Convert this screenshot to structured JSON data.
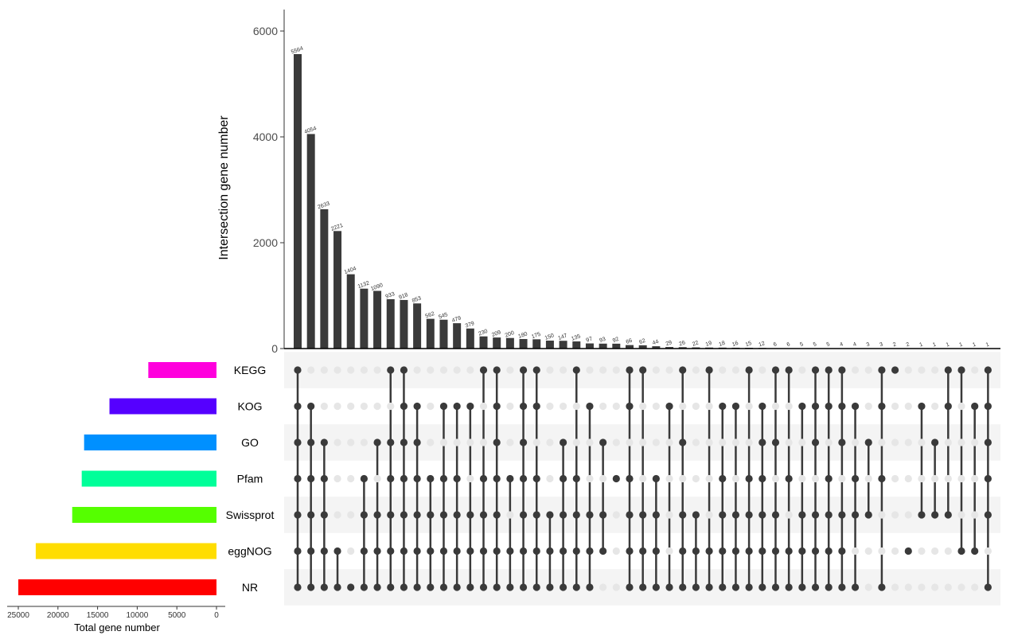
{
  "chart_data": {
    "type": "bar",
    "subtype": "upset",
    "ylabel": "Intersection gene number",
    "ylim": [
      0,
      6400
    ],
    "yticks": [
      0,
      2000,
      4000,
      6000
    ],
    "set_size_xlabel": "Total gene number",
    "set_size_xlim": [
      0,
      25000
    ],
    "set_size_xticks": [
      25000,
      20000,
      15000,
      10000,
      5000,
      0
    ],
    "sets": [
      {
        "name": "KEGG",
        "size": 8600,
        "color": "#FF00DD"
      },
      {
        "name": "KOG",
        "size": 13500,
        "color": "#5500FF"
      },
      {
        "name": "GO",
        "size": 16700,
        "color": "#0090FF"
      },
      {
        "name": "Pfam",
        "size": 17000,
        "color": "#00FF99"
      },
      {
        "name": "Swissprot",
        "size": 18200,
        "color": "#55FF00"
      },
      {
        "name": "eggNOG",
        "size": 22800,
        "color": "#FFDD00"
      },
      {
        "name": "NR",
        "size": 25000,
        "color": "#FF0000"
      }
    ],
    "intersections": [
      {
        "value": 5564,
        "label": "5564",
        "sets": [
          "KEGG",
          "KOG",
          "GO",
          "Pfam",
          "Swissprot",
          "eggNOG",
          "NR"
        ]
      },
      {
        "value": 4054,
        "label": "4054",
        "sets": [
          "KOG",
          "GO",
          "Pfam",
          "Swissprot",
          "eggNOG",
          "NR"
        ]
      },
      {
        "value": 2633,
        "label": "2633",
        "sets": [
          "GO",
          "Pfam",
          "Swissprot",
          "eggNOG",
          "NR"
        ]
      },
      {
        "value": 2221,
        "label": "2221",
        "sets": [
          "eggNOG",
          "NR"
        ]
      },
      {
        "value": 1404,
        "label": "1404",
        "sets": [
          "NR"
        ]
      },
      {
        "value": 1132,
        "label": "1132",
        "sets": [
          "Pfam",
          "Swissprot",
          "eggNOG",
          "NR"
        ]
      },
      {
        "value": 1090,
        "label": "1090",
        "sets": [
          "GO",
          "Swissprot",
          "eggNOG",
          "NR"
        ]
      },
      {
        "value": 933,
        "label": "933",
        "sets": [
          "KEGG",
          "GO",
          "Pfam",
          "Swissprot",
          "eggNOG",
          "NR"
        ]
      },
      {
        "value": 918,
        "label": "918",
        "sets": [
          "KEGG",
          "KOG",
          "GO",
          "Pfam",
          "Swissprot",
          "eggNOG",
          "NR"
        ]
      },
      {
        "value": 853,
        "label": "853",
        "sets": [
          "KOG",
          "GO",
          "Pfam",
          "Swissprot",
          "eggNOG",
          "NR"
        ]
      },
      {
        "value": 562,
        "label": "562",
        "sets": [
          "Pfam",
          "Swissprot",
          "eggNOG",
          "NR"
        ]
      },
      {
        "value": 545,
        "label": "545",
        "sets": [
          "KOG",
          "Pfam",
          "Swissprot",
          "eggNOG",
          "NR"
        ]
      },
      {
        "value": 479,
        "label": "479",
        "sets": [
          "KOG",
          "Pfam",
          "Swissprot",
          "eggNOG",
          "NR"
        ]
      },
      {
        "value": 379,
        "label": "379",
        "sets": [
          "KOG",
          "Swissprot",
          "eggNOG",
          "NR"
        ]
      },
      {
        "value": 230,
        "label": "230",
        "sets": [
          "KEGG",
          "Pfam",
          "Swissprot",
          "eggNOG",
          "NR"
        ]
      },
      {
        "value": 209,
        "label": "209",
        "sets": [
          "KEGG",
          "KOG",
          "GO",
          "Pfam",
          "Swissprot",
          "eggNOG",
          "NR"
        ]
      },
      {
        "value": 200,
        "label": "200",
        "sets": [
          "Pfam",
          "eggNOG",
          "NR"
        ]
      },
      {
        "value": 180,
        "label": "180",
        "sets": [
          "KEGG",
          "KOG",
          "GO",
          "Pfam",
          "Swissprot",
          "eggNOG",
          "NR"
        ]
      },
      {
        "value": 175,
        "label": "175",
        "sets": [
          "KEGG",
          "KOG",
          "Pfam",
          "Swissprot",
          "eggNOG",
          "NR"
        ]
      },
      {
        "value": 150,
        "label": "150",
        "sets": [
          "Swissprot",
          "eggNOG",
          "NR"
        ]
      },
      {
        "value": 147,
        "label": "147",
        "sets": [
          "GO",
          "Pfam",
          "Swissprot",
          "eggNOG",
          "NR"
        ]
      },
      {
        "value": 135,
        "label": "135",
        "sets": [
          "KEGG",
          "Pfam",
          "Swissprot",
          "eggNOG",
          "NR"
        ]
      },
      {
        "value": 97,
        "label": "97",
        "sets": [
          "KOG",
          "Swissprot",
          "eggNOG",
          "NR"
        ]
      },
      {
        "value": 93,
        "label": "93",
        "sets": [
          "GO",
          "Swissprot",
          "eggNOG"
        ]
      },
      {
        "value": 92,
        "label": "92",
        "sets": [
          "Pfam"
        ]
      },
      {
        "value": 66,
        "label": "66",
        "sets": [
          "KEGG",
          "KOG",
          "Pfam",
          "Swissprot",
          "eggNOG",
          "NR"
        ]
      },
      {
        "value": 62,
        "label": "62",
        "sets": [
          "KEGG",
          "Swissprot",
          "eggNOG",
          "NR"
        ]
      },
      {
        "value": 44,
        "label": "44",
        "sets": [
          "Pfam",
          "Swissprot",
          "eggNOG",
          "NR"
        ]
      },
      {
        "value": 29,
        "label": "29",
        "sets": [
          "KOG",
          "NR"
        ]
      },
      {
        "value": 26,
        "label": "26",
        "sets": [
          "KEGG",
          "GO",
          "Swissprot",
          "eggNOG",
          "NR"
        ]
      },
      {
        "value": 22,
        "label": "22",
        "sets": [
          "Swissprot",
          "eggNOG",
          "NR"
        ]
      },
      {
        "value": 19,
        "label": "19",
        "sets": [
          "KEGG",
          "eggNOG",
          "NR"
        ]
      },
      {
        "value": 18,
        "label": "18",
        "sets": [
          "KOG",
          "Pfam",
          "Swissprot",
          "eggNOG",
          "NR"
        ]
      },
      {
        "value": 16,
        "label": "16",
        "sets": [
          "KOG",
          "Swissprot",
          "eggNOG",
          "NR"
        ]
      },
      {
        "value": 15,
        "label": "15",
        "sets": [
          "KEGG",
          "Pfam",
          "Swissprot",
          "eggNOG",
          "NR"
        ]
      },
      {
        "value": 12,
        "label": "12",
        "sets": [
          "KOG",
          "GO",
          "Pfam",
          "Swissprot",
          "eggNOG",
          "NR"
        ]
      },
      {
        "value": 6,
        "label": "6",
        "sets": [
          "KEGG",
          "GO",
          "Swissprot",
          "eggNOG",
          "NR"
        ]
      },
      {
        "value": 6,
        "label": "6",
        "sets": [
          "KEGG",
          "Pfam",
          "eggNOG",
          "NR"
        ]
      },
      {
        "value": 5,
        "label": "5",
        "sets": [
          "KOG",
          "Swissprot",
          "eggNOG",
          "NR"
        ]
      },
      {
        "value": 5,
        "label": "5",
        "sets": [
          "KEGG",
          "KOG",
          "GO",
          "Swissprot",
          "eggNOG",
          "NR"
        ]
      },
      {
        "value": 5,
        "label": "5",
        "sets": [
          "KEGG",
          "KOG",
          "Pfam",
          "Swissprot",
          "eggNOG",
          "NR"
        ]
      },
      {
        "value": 4,
        "label": "4",
        "sets": [
          "KEGG",
          "KOG",
          "GO",
          "Swissprot",
          "eggNOG",
          "NR"
        ]
      },
      {
        "value": 4,
        "label": "4",
        "sets": [
          "KOG",
          "Pfam",
          "Swissprot",
          "NR"
        ]
      },
      {
        "value": 3,
        "label": "3",
        "sets": [
          "GO",
          "Swissprot"
        ]
      },
      {
        "value": 3,
        "label": "3",
        "sets": [
          "KEGG",
          "KOG",
          "Pfam",
          "NR"
        ]
      },
      {
        "value": 2,
        "label": "2",
        "sets": [
          "KEGG"
        ]
      },
      {
        "value": 2,
        "label": "2",
        "sets": [
          "eggNOG"
        ]
      },
      {
        "value": 1,
        "label": "1",
        "sets": [
          "KOG",
          "Swissprot"
        ]
      },
      {
        "value": 1,
        "label": "1",
        "sets": [
          "GO",
          "Swissprot"
        ]
      },
      {
        "value": 1,
        "label": "1",
        "sets": [
          "KEGG",
          "KOG",
          "Swissprot"
        ]
      },
      {
        "value": 1,
        "label": "1",
        "sets": [
          "KEGG",
          "eggNOG"
        ]
      },
      {
        "value": 1,
        "label": "1",
        "sets": [
          "KOG",
          "eggNOG"
        ]
      },
      {
        "value": 1,
        "label": "1",
        "sets": [
          "KEGG",
          "KOG",
          "GO",
          "Pfam",
          "Swissprot",
          "NR"
        ]
      }
    ],
    "colors": {
      "bar": "#3a3a3a",
      "dot_active": "#3a3a3a",
      "dot_inactive": "#e6e6e6",
      "stripe": "#f4f4f4"
    }
  }
}
